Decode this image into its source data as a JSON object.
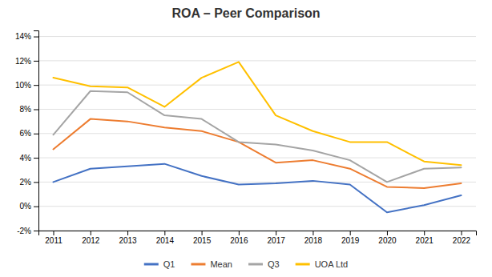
{
  "chart_data": {
    "type": "line",
    "title": "ROA – Peer Comparison",
    "x": [
      2011,
      2012,
      2013,
      2014,
      2015,
      2016,
      2017,
      2018,
      2019,
      2020,
      2021,
      2022
    ],
    "series": [
      {
        "name": "Q1",
        "color": "#4472C4",
        "values": [
          0.02,
          0.031,
          0.033,
          0.035,
          0.025,
          0.018,
          0.019,
          0.021,
          0.018,
          -0.005,
          0.001,
          0.009
        ]
      },
      {
        "name": "Mean",
        "color": "#ED7D31",
        "values": [
          0.047,
          0.072,
          0.07,
          0.065,
          0.062,
          0.053,
          0.036,
          0.038,
          0.031,
          0.016,
          0.015,
          0.019
        ]
      },
      {
        "name": "Q3",
        "color": "#A5A5A5",
        "values": [
          0.059,
          0.095,
          0.094,
          0.075,
          0.072,
          0.053,
          0.051,
          0.046,
          0.038,
          0.02,
          0.031,
          0.032
        ]
      },
      {
        "name": "UOA Ltd",
        "color": "#FFC000",
        "values": [
          0.106,
          0.099,
          0.098,
          0.082,
          0.106,
          0.119,
          0.075,
          0.062,
          0.053,
          0.053,
          0.037,
          0.034
        ]
      }
    ],
    "xlim": [
      2010.6,
      2022.4
    ],
    "xticks": [
      2011,
      2012,
      2013,
      2014,
      2015,
      2016,
      2017,
      2018,
      2019,
      2020,
      2021,
      2022
    ],
    "ylim": [
      -0.02,
      0.145
    ],
    "yticks": [
      {
        "value": -0.02,
        "label": "-2%"
      },
      {
        "value": 0.0,
        "label": "0%"
      },
      {
        "value": 0.02,
        "label": "2%"
      },
      {
        "value": 0.04,
        "label": "4%"
      },
      {
        "value": 0.06,
        "label": "6%"
      },
      {
        "value": 0.08,
        "label": "8%"
      },
      {
        "value": 0.1,
        "label": "10%"
      },
      {
        "value": 0.12,
        "label": "12%"
      },
      {
        "value": 0.14,
        "label": "14%"
      }
    ],
    "grid": true,
    "legend": "bottom"
  }
}
